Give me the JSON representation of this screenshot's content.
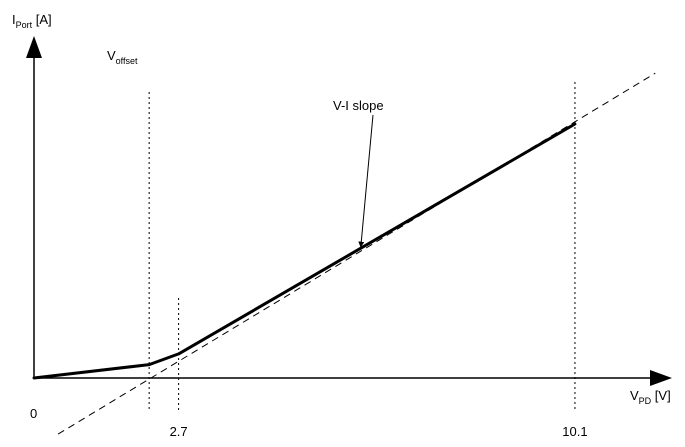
{
  "chart_data": {
    "type": "line",
    "xlabel": {
      "main": "V",
      "sub": "PD",
      "unit": " [V]"
    },
    "ylabel": {
      "main": "I",
      "sub": "Port",
      "unit": " [A]"
    },
    "origin_label": "0",
    "x_ticks": [
      {
        "value": 2.7,
        "label": "2.7"
      },
      {
        "value": 10.1,
        "label": "10.1"
      }
    ],
    "xlim": [
      0,
      11.8
    ],
    "ylim": [
      0,
      1
    ],
    "v_offset": {
      "value": 2.15,
      "label_main": "V",
      "label_sub": "offset"
    },
    "series": [
      {
        "style": "solid",
        "points": [
          [
            0,
            0
          ],
          [
            2.15,
            0.05
          ],
          [
            2.7,
            0.09
          ],
          [
            10.1,
            0.95
          ]
        ]
      },
      {
        "style": "dashed",
        "points": [
          [
            0.45,
            -0.21
          ],
          [
            11.6,
            1.14
          ]
        ]
      }
    ],
    "annotation": {
      "text": "V-I slope",
      "target": [
        6.1,
        0.48
      ]
    },
    "grid": false,
    "legend": "none"
  }
}
